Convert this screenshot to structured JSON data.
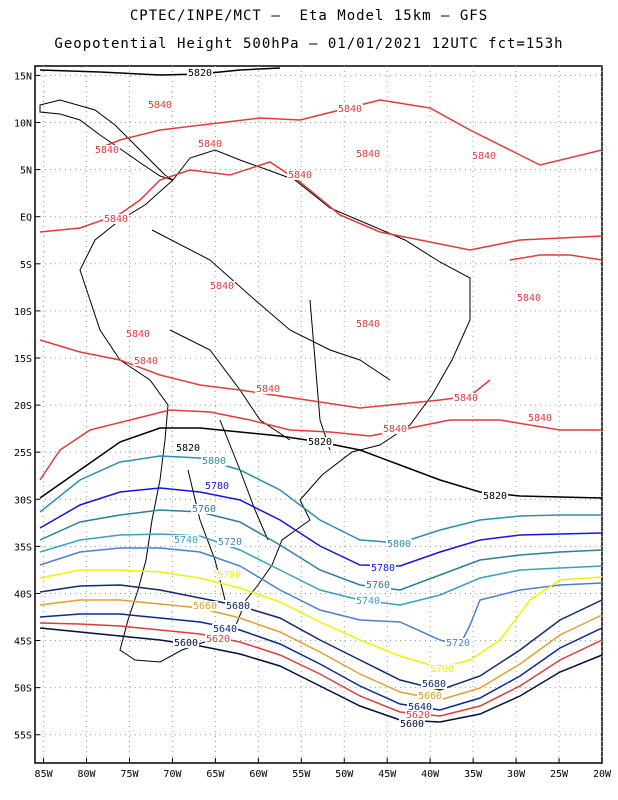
{
  "title": {
    "line1": "CPTEC/INPE/MCT –  Eta Model 15km – GFS",
    "line2": "Geopotential Height 500hPa – 01/01/2021 12UTC fct=153h"
  },
  "map": {
    "type": "contour",
    "lon_range": [
      -86,
      -20
    ],
    "lat_range": [
      -58,
      16
    ],
    "lon_ticks": [
      "85W",
      "80W",
      "75W",
      "70W",
      "65W",
      "60W",
      "55W",
      "50W",
      "45W",
      "40W",
      "35W",
      "30W",
      "25W",
      "20W"
    ],
    "lat_ticks": [
      "15N",
      "10N",
      "5N",
      "EQ",
      "5S",
      "10S",
      "15S",
      "20S",
      "25S",
      "30S",
      "35S",
      "40S",
      "45S",
      "50S",
      "55S"
    ],
    "grid": true,
    "colors": {
      "5840": "#e03c3c",
      "5820": "#000000",
      "5800": "#2a8fb0",
      "5780": "#1414e6",
      "5760": "#2b7f9a",
      "5740": "#3aa0c4",
      "5720": "#4a7fd0",
      "5700": "#f2f200",
      "5680": "#102a6e",
      "5660": "#e0a030",
      "5640": "#0a2a8a",
      "5620": "#e03c3c",
      "5600": "#001040",
      "land": "#000000"
    },
    "contour_labels": {
      "c5840": "5840",
      "c5820": "5820",
      "c5800": "5800",
      "c5780": "5780",
      "c5760": "5760",
      "c5740": "5740",
      "c5720": "5720",
      "c5700": "5700",
      "c5680": "5680",
      "c5660": "5660",
      "c5640": "5640",
      "c5620": "5620",
      "c5600": "5600"
    }
  }
}
